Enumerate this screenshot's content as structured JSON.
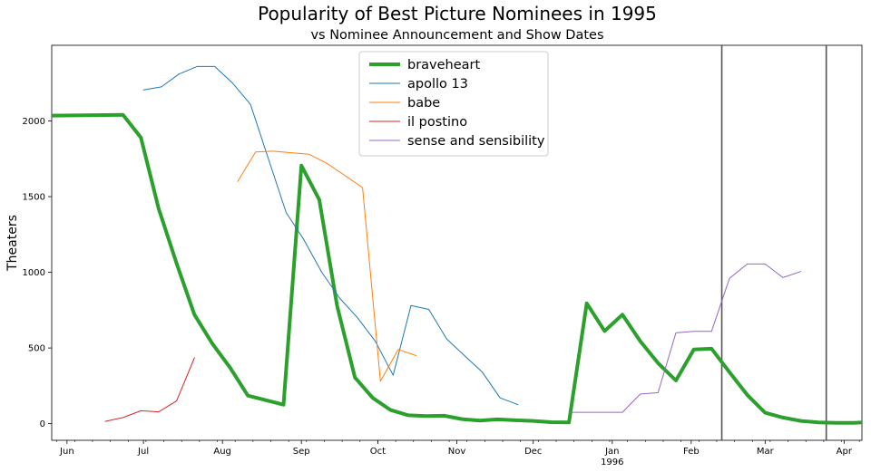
{
  "chart_data": {
    "type": "line",
    "title": "Popularity of Best Picture Nominees in 1995",
    "subtitle": "vs Nominee Announcement and Show Dates",
    "xlabel": "",
    "ylabel": "Theaters",
    "xlim": [
      "1995-05-26",
      "1996-04-08"
    ],
    "ylim": [
      -110,
      2500
    ],
    "yticks": [
      0,
      500,
      1000,
      1500,
      2000
    ],
    "xticks": [
      {
        "date": "1995-06-01",
        "label": "Jun"
      },
      {
        "date": "1995-07-01",
        "label": "Jul"
      },
      {
        "date": "1995-08-01",
        "label": "Aug"
      },
      {
        "date": "1995-09-01",
        "label": "Sep"
      },
      {
        "date": "1995-10-01",
        "label": "Oct"
      },
      {
        "date": "1995-11-01",
        "label": "Nov"
      },
      {
        "date": "1995-12-01",
        "label": "Dec"
      },
      {
        "date": "1996-01-01",
        "label": "Jan"
      },
      {
        "date": "1996-02-01",
        "label": "Feb"
      },
      {
        "date": "1996-03-01",
        "label": "Mar"
      },
      {
        "date": "1996-04-01",
        "label": "Apr"
      }
    ],
    "year_label": "1996",
    "vlines": [
      "1996-02-13",
      "1996-03-25"
    ],
    "legend_position": "top-center",
    "grid": false,
    "series": [
      {
        "name": "braveheart",
        "color": "#2ca02c",
        "width": 4,
        "x": [
          "1995-05-24",
          "1995-06-23",
          "1995-06-30",
          "1995-07-07",
          "1995-07-14",
          "1995-07-21",
          "1995-07-28",
          "1995-08-04",
          "1995-08-11",
          "1995-08-25",
          "1995-09-01",
          "1995-09-08",
          "1995-09-15",
          "1995-09-22",
          "1995-09-29",
          "1995-10-06",
          "1995-10-13",
          "1995-10-20",
          "1995-10-27",
          "1995-11-03",
          "1995-11-10",
          "1995-11-17",
          "1995-11-24",
          "1995-12-01",
          "1995-12-08",
          "1995-12-15",
          "1995-12-22",
          "1995-12-29",
          "1996-01-05",
          "1996-01-12",
          "1996-01-19",
          "1996-01-26",
          "1996-02-02",
          "1996-02-09",
          "1996-02-16",
          "1996-02-23",
          "1996-03-01",
          "1996-03-08",
          "1996-03-15",
          "1996-03-22",
          "1996-03-29",
          "1996-04-05",
          "1996-04-08"
        ],
        "y": [
          2035,
          2040,
          1890,
          1420,
          1060,
          720,
          530,
          370,
          185,
          125,
          1705,
          1480,
          780,
          305,
          170,
          90,
          55,
          50,
          52,
          30,
          20,
          28,
          22,
          18,
          10,
          8,
          795,
          612,
          720,
          545,
          400,
          285,
          490,
          495,
          340,
          190,
          72,
          40,
          18,
          8,
          5,
          5,
          8
        ]
      },
      {
        "name": "apollo 13",
        "color": "#1f77b4",
        "width": 1,
        "x": [
          "1995-07-01",
          "1995-07-08",
          "1995-07-15",
          "1995-07-22",
          "1995-07-29",
          "1995-08-05",
          "1995-08-12",
          "1995-08-26",
          "1995-09-02",
          "1995-09-09",
          "1995-09-16",
          "1995-09-23",
          "1995-09-30",
          "1995-10-07",
          "1995-10-14",
          "1995-10-21",
          "1995-10-28",
          "1995-11-04",
          "1995-11-11",
          "1995-11-18",
          "1995-11-25"
        ],
        "y": [
          2205,
          2225,
          2310,
          2360,
          2360,
          2250,
          2110,
          1395,
          1215,
          1000,
          830,
          700,
          545,
          320,
          780,
          755,
          560,
          450,
          340,
          170,
          125
        ]
      },
      {
        "name": "babe",
        "color": "#ff7f0e",
        "width": 1,
        "x": [
          "1995-08-07",
          "1995-08-14",
          "1995-08-21",
          "1995-08-28",
          "1995-09-04",
          "1995-09-11",
          "1995-09-25",
          "1995-10-02",
          "1995-10-09",
          "1995-10-16"
        ],
        "y": [
          1600,
          1795,
          1800,
          1790,
          1780,
          1720,
          1560,
          280,
          490,
          450
        ]
      },
      {
        "name": "il postino",
        "color": "#d62728",
        "width": 1,
        "x": [
          "1995-06-16",
          "1995-06-23",
          "1995-06-30",
          "1995-07-07",
          "1995-07-14",
          "1995-07-21"
        ],
        "y": [
          15,
          40,
          85,
          78,
          150,
          435
        ]
      },
      {
        "name": "sense and sensibility",
        "color": "#9467bd",
        "width": 1,
        "x": [
          "1995-12-15",
          "1995-12-22",
          "1995-12-29",
          "1996-01-05",
          "1996-01-12",
          "1996-01-19",
          "1996-01-26",
          "1996-02-02",
          "1996-02-09",
          "1996-02-16",
          "1996-02-23",
          "1996-03-01",
          "1996-03-08",
          "1996-03-15"
        ],
        "y": [
          75,
          75,
          75,
          75,
          195,
          205,
          600,
          610,
          610,
          960,
          1055,
          1055,
          965,
          1005
        ]
      }
    ]
  }
}
